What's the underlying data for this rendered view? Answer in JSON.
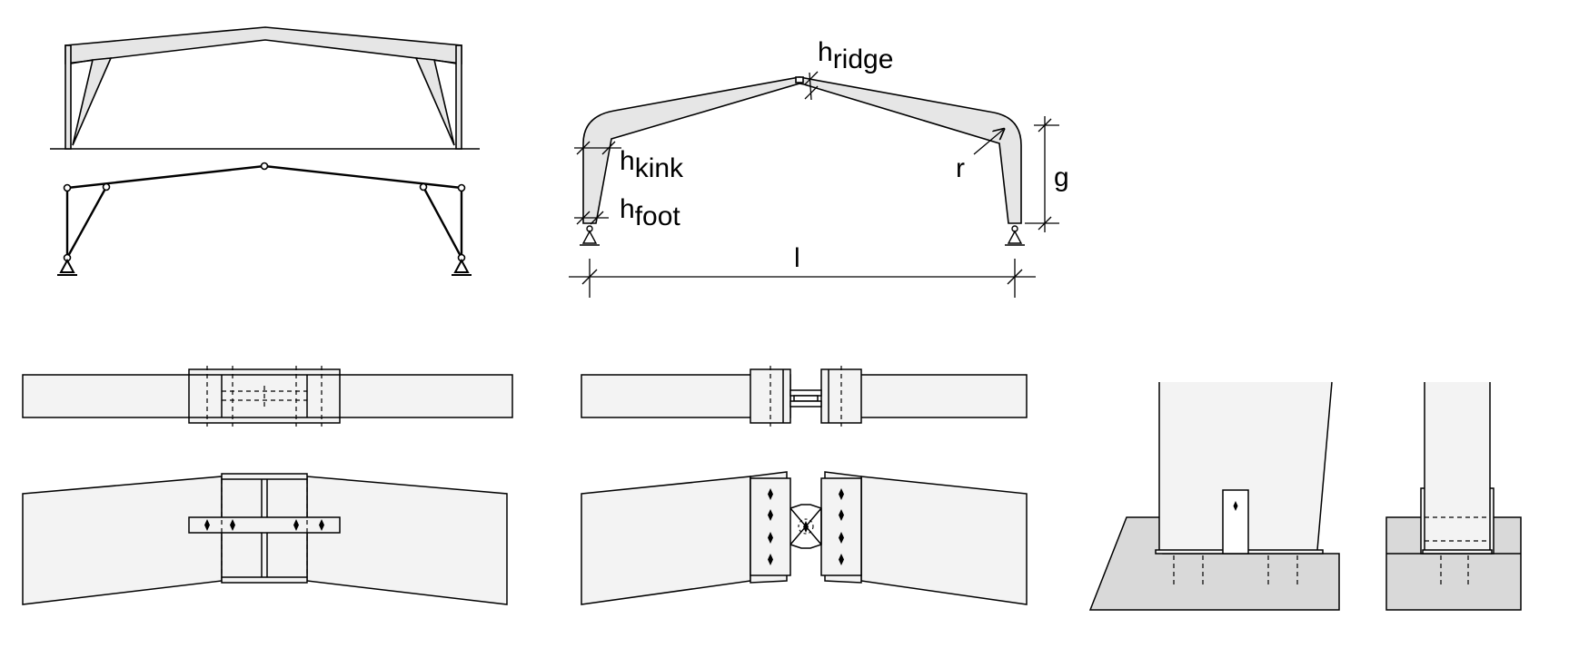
{
  "colors": {
    "stroke": "#000000",
    "fill_light": "#e6e6e6",
    "fill_lighter": "#f3f3f3",
    "fill_foundation": "#d9d9d9",
    "background": "#ffffff"
  },
  "labels": {
    "h_ridge": {
      "main": "h",
      "sub": "ridge"
    },
    "h_kink": {
      "main": "h",
      "sub": "kink"
    },
    "h_foot": {
      "main": "h",
      "sub": "foot"
    },
    "r": "r",
    "g": "g",
    "l": "l"
  }
}
